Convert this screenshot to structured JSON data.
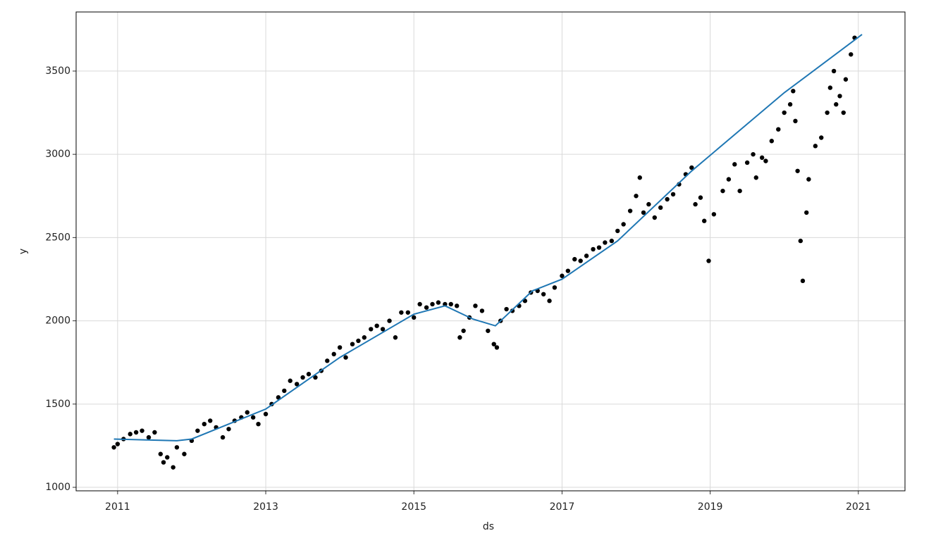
{
  "chart_data": {
    "type": "scatter",
    "x_label": "ds",
    "y_label": "y",
    "grid": true,
    "xlim": [
      2010.44,
      2021.63
    ],
    "xticks": [
      2011,
      2013,
      2015,
      2017,
      2019,
      2021
    ],
    "ylim": [
      979,
      3855
    ],
    "yticks": [
      1000,
      1500,
      2000,
      2500,
      3000,
      3500
    ],
    "series": [
      {
        "type": "scatter",
        "color": "#000000",
        "x": [
          2010.95,
          2011.0,
          2011.08,
          2011.17,
          2011.25,
          2011.33,
          2011.42,
          2011.5,
          2011.58,
          2011.62,
          2011.67,
          2011.75,
          2011.8,
          2011.9,
          2012.0,
          2012.08,
          2012.17,
          2012.25,
          2012.33,
          2012.42,
          2012.5,
          2012.58,
          2012.67,
          2012.75,
          2012.83,
          2012.9,
          2013.0,
          2013.08,
          2013.17,
          2013.25,
          2013.33,
          2013.42,
          2013.5,
          2013.58,
          2013.67,
          2013.75,
          2013.83,
          2013.92,
          2014.0,
          2014.08,
          2014.17,
          2014.25,
          2014.33,
          2014.42,
          2014.5,
          2014.58,
          2014.67,
          2014.75,
          2014.83,
          2014.92,
          2015.0,
          2015.08,
          2015.17,
          2015.25,
          2015.33,
          2015.42,
          2015.5,
          2015.58,
          2015.62,
          2015.67,
          2015.75,
          2015.83,
          2015.92,
          2016.0,
          2016.08,
          2016.12,
          2016.17,
          2016.25,
          2016.33,
          2016.42,
          2016.5,
          2016.58,
          2016.67,
          2016.75,
          2016.83,
          2016.9,
          2017.0,
          2017.08,
          2017.17,
          2017.25,
          2017.33,
          2017.42,
          2017.5,
          2017.58,
          2017.67,
          2017.75,
          2017.83,
          2017.92,
          2018.0,
          2018.05,
          2018.1,
          2018.17,
          2018.25,
          2018.33,
          2018.42,
          2018.5,
          2018.58,
          2018.67,
          2018.75,
          2018.8,
          2018.87,
          2018.92,
          2018.98,
          2019.05,
          2019.17,
          2019.25,
          2019.33,
          2019.4,
          2019.5,
          2019.58,
          2019.62,
          2019.7,
          2019.75,
          2019.83,
          2019.92,
          2020.0,
          2020.08,
          2020.12,
          2020.15,
          2020.18,
          2020.22,
          2020.25,
          2020.3,
          2020.33,
          2020.42,
          2020.5,
          2020.58,
          2020.62,
          2020.67,
          2020.7,
          2020.75,
          2020.8,
          2020.83,
          2020.9,
          2020.95
        ],
        "values": [
          1240,
          1260,
          1290,
          1320,
          1330,
          1340,
          1300,
          1330,
          1200,
          1150,
          1180,
          1120,
          1240,
          1200,
          1280,
          1340,
          1380,
          1400,
          1360,
          1300,
          1350,
          1400,
          1420,
          1450,
          1420,
          1380,
          1440,
          1500,
          1540,
          1580,
          1640,
          1620,
          1660,
          1680,
          1660,
          1700,
          1760,
          1800,
          1840,
          1780,
          1860,
          1880,
          1900,
          1950,
          1970,
          1950,
          2000,
          1900,
          2050,
          2050,
          2020,
          2100,
          2080,
          2100,
          2110,
          2100,
          2100,
          2090,
          1900,
          1940,
          2020,
          2090,
          2060,
          1940,
          1860,
          1840,
          2000,
          2070,
          2060,
          2090,
          2120,
          2170,
          2180,
          2160,
          2120,
          2200,
          2270,
          2300,
          2370,
          2360,
          2390,
          2430,
          2440,
          2470,
          2480,
          2540,
          2580,
          2660,
          2750,
          2860,
          2650,
          2700,
          2620,
          2680,
          2730,
          2760,
          2820,
          2880,
          2920,
          2700,
          2740,
          2600,
          2360,
          2640,
          2780,
          2850,
          2940,
          2780,
          2950,
          3000,
          2860,
          2980,
          2960,
          3080,
          3150,
          3250,
          3300,
          3380,
          3200,
          2900,
          2480,
          2240,
          2650,
          2850,
          3050,
          3100,
          3250,
          3400,
          3500,
          3300,
          3350,
          3250,
          3450,
          3600,
          3700
        ]
      },
      {
        "type": "line",
        "color": "#1f77b4",
        "x": [
          2010.95,
          2011.8,
          2012.0,
          2013.0,
          2014.0,
          2015.0,
          2015.42,
          2015.8,
          2016.1,
          2016.6,
          2017.0,
          2017.75,
          2018.75,
          2020.0,
          2021.05
        ],
        "values": [
          1290,
          1280,
          1290,
          1470,
          1780,
          2040,
          2090,
          2010,
          1970,
          2180,
          2250,
          2480,
          2900,
          3370,
          3720
        ]
      }
    ]
  }
}
